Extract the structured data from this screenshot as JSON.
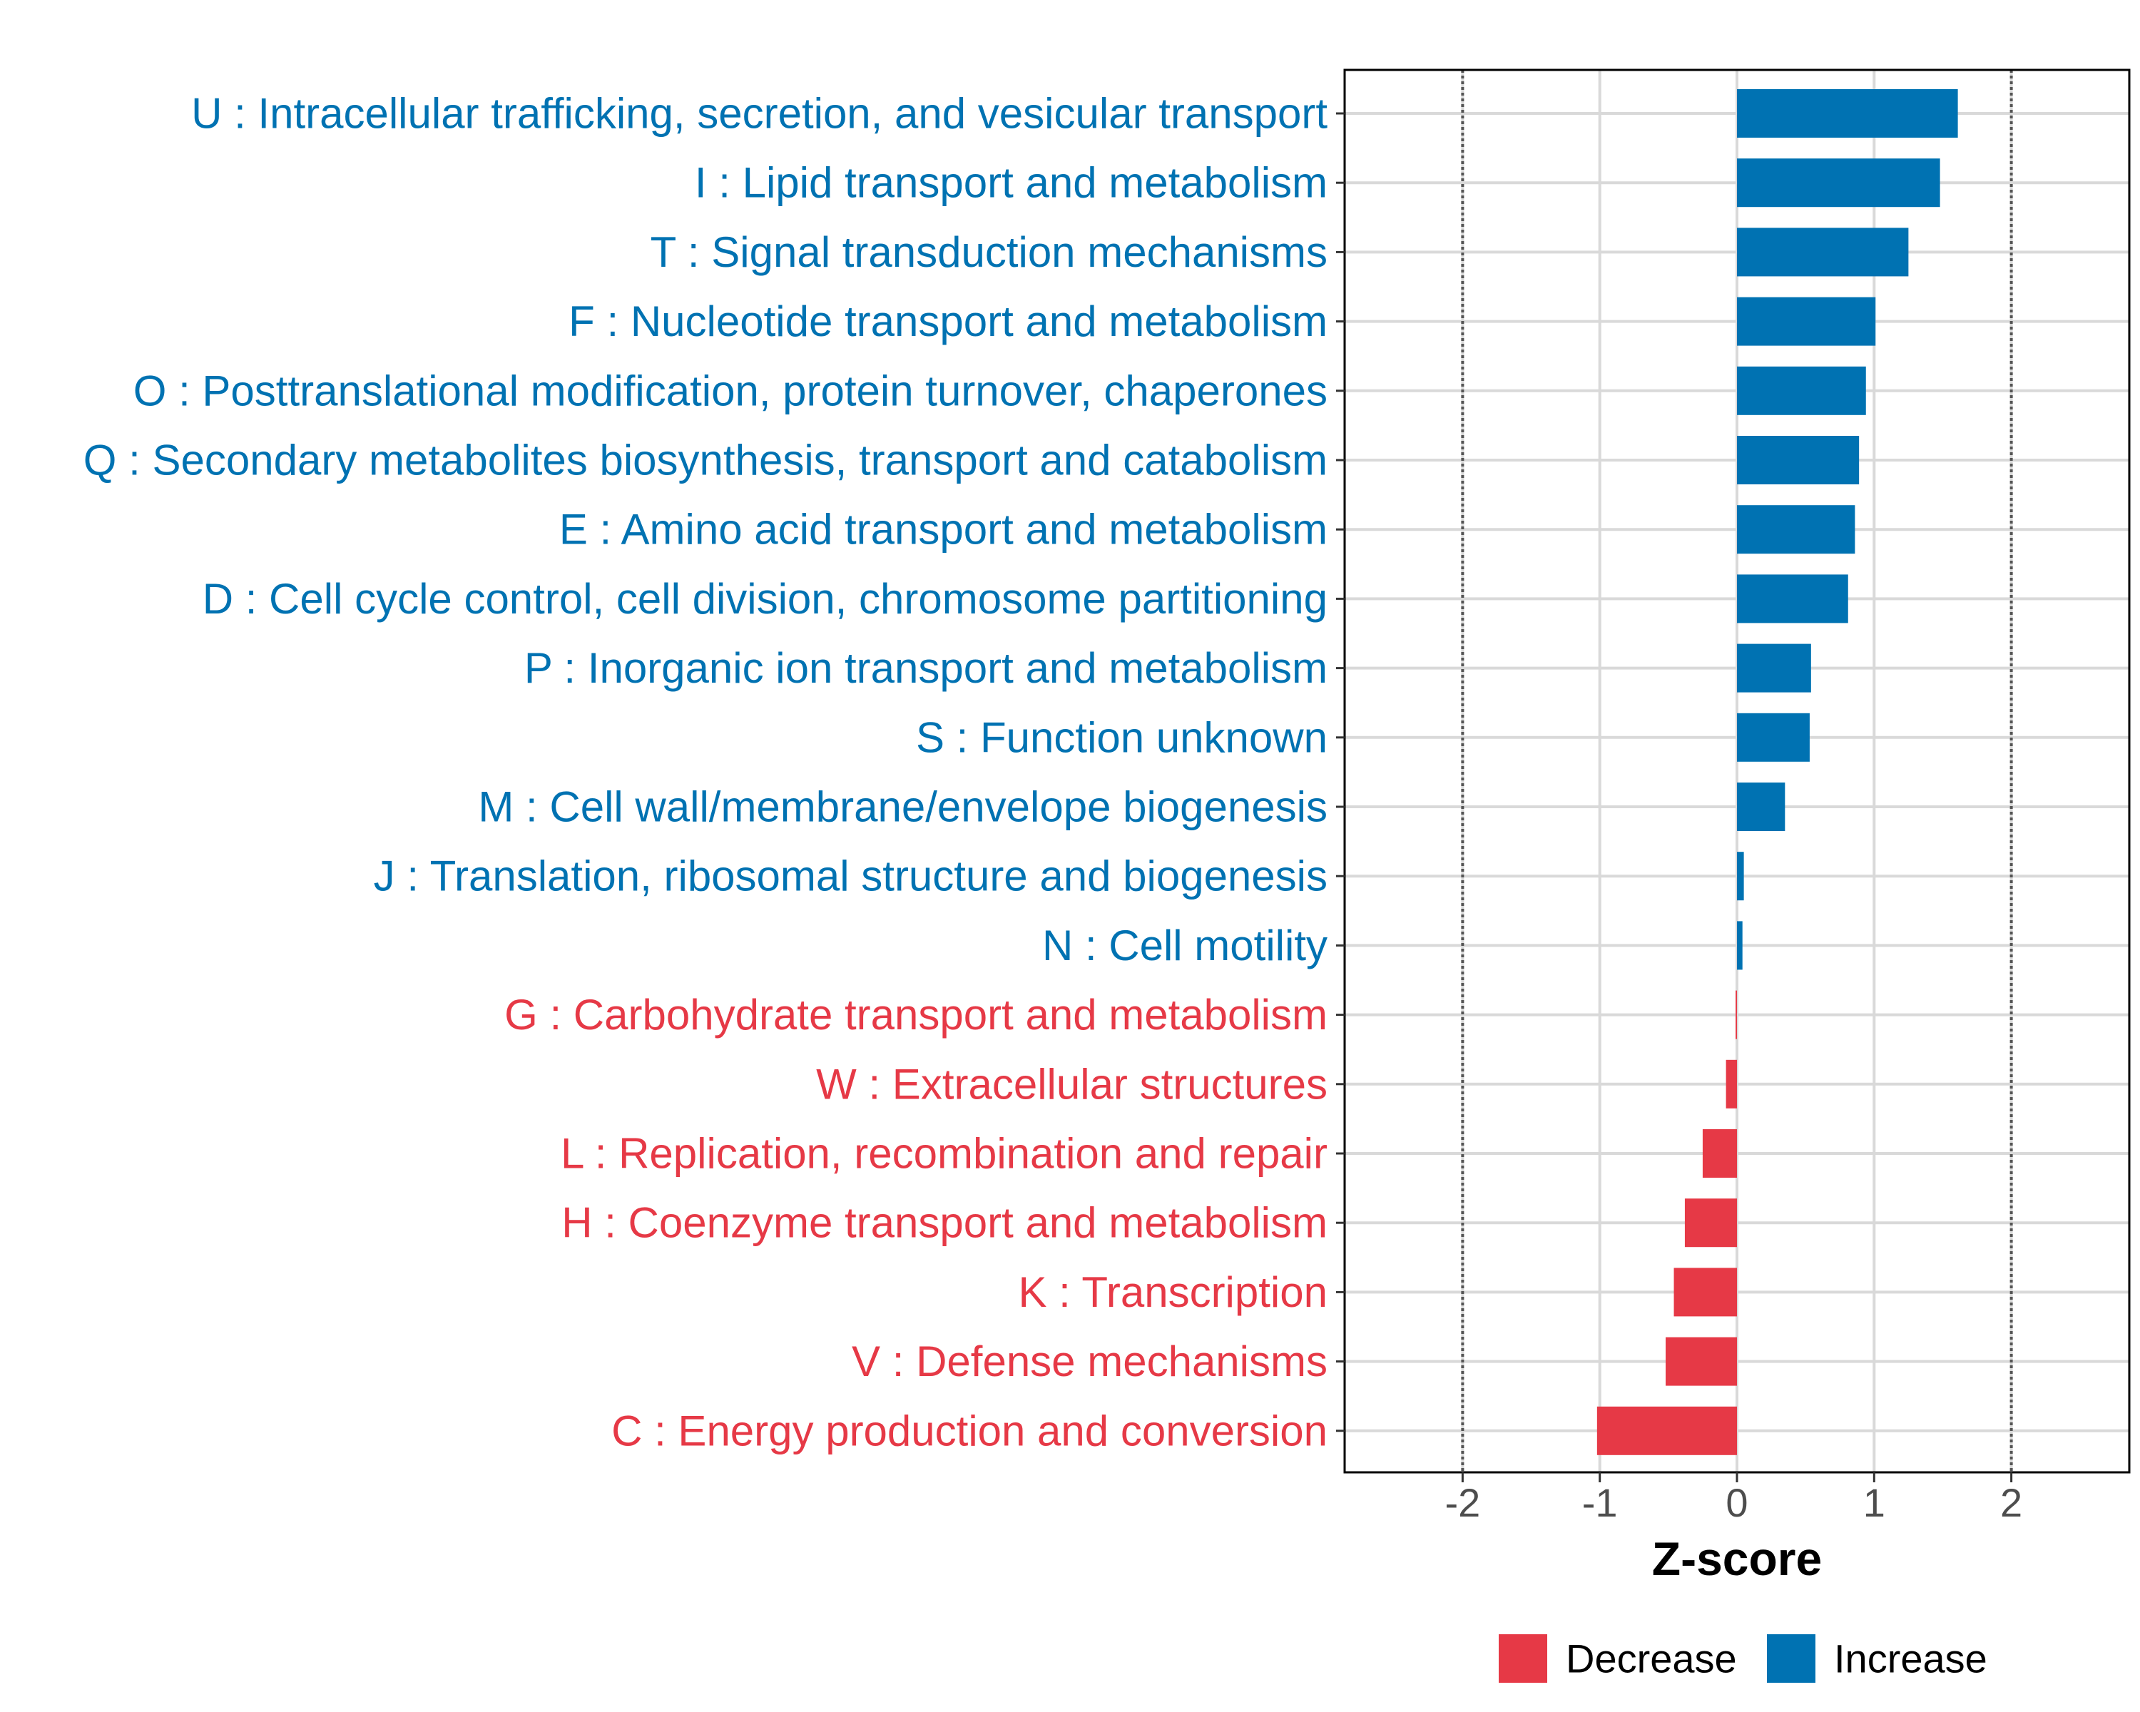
{
  "chart_data": {
    "type": "bar",
    "orientation": "horizontal",
    "xlabel": "Z-score",
    "xlim": [
      -2.86,
      2.86
    ],
    "xticks": [
      -2,
      -1,
      0,
      1,
      2
    ],
    "xtick_labels": [
      "-2",
      "-1",
      "0",
      "1",
      "2"
    ],
    "reference_lines": [
      -2,
      2
    ],
    "grid": true,
    "legend_position": "bottom",
    "categories": [
      "U : Intracellular trafficking, secretion, and vesicular transport",
      "I : Lipid transport and metabolism",
      "T : Signal transduction mechanisms",
      "F : Nucleotide transport and metabolism",
      "O : Posttranslational modification, protein turnover, chaperones",
      "Q : Secondary metabolites biosynthesis, transport and catabolism",
      "E : Amino acid transport and metabolism",
      "D : Cell cycle control, cell division, chromosome partitioning",
      "P : Inorganic ion transport and metabolism",
      "S : Function unknown",
      "M : Cell wall/membrane/envelope biogenesis",
      "J : Translation, ribosomal structure and biogenesis",
      "N : Cell motility",
      "G : Carbohydrate transport and metabolism",
      "W : Extracellular structures",
      "L : Replication, recombination and repair",
      "H : Coenzyme transport and metabolism",
      "K : Transcription",
      "V : Defense mechanisms",
      "C : Energy production and conversion"
    ],
    "values": [
      1.61,
      1.48,
      1.25,
      1.01,
      0.94,
      0.89,
      0.86,
      0.81,
      0.54,
      0.53,
      0.35,
      0.05,
      0.04,
      -0.01,
      -0.08,
      -0.25,
      -0.38,
      -0.46,
      -0.52,
      -1.02
    ],
    "groups": [
      "Increase",
      "Increase",
      "Increase",
      "Increase",
      "Increase",
      "Increase",
      "Increase",
      "Increase",
      "Increase",
      "Increase",
      "Increase",
      "Increase",
      "Increase",
      "Decrease",
      "Decrease",
      "Decrease",
      "Decrease",
      "Decrease",
      "Decrease",
      "Decrease"
    ],
    "legend": [
      {
        "name": "Decrease",
        "color": "#E63946"
      },
      {
        "name": "Increase",
        "color": "#0072B2"
      }
    ],
    "colors": {
      "increase": "#0072B2",
      "decrease": "#E63946",
      "grid": "#d9d9d9",
      "reference": "#555555",
      "frame": "#000000"
    }
  }
}
